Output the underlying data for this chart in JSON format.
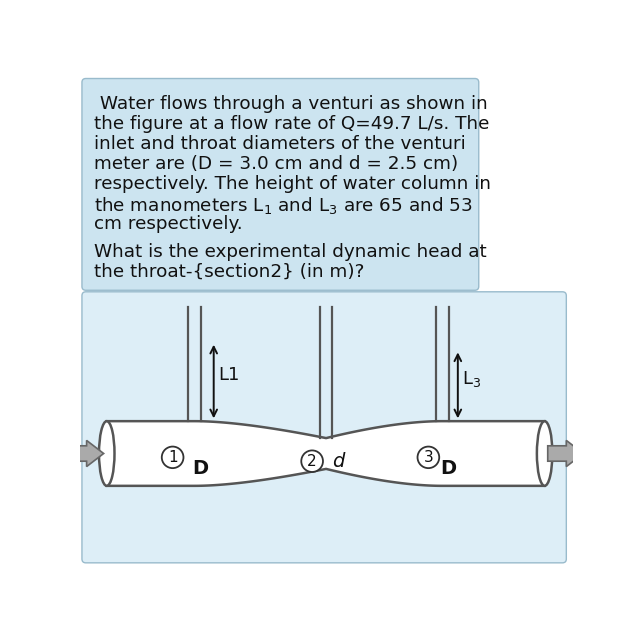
{
  "text_box_color": "#cce4f0",
  "diagram_box_color": "#ddeef7",
  "text_lines": [
    " Water flows through a venturi as shown in",
    "the figure at a flow rate of Q=49.7 L/s. The",
    "inlet and throat diameters of the venturi",
    "meter are (D = 3.0 cm and d = 2.5 cm)",
    "respectively. The height of water column in",
    "the manometers L$_1$ and L$_3$ are 65 and 53",
    "cm respectively."
  ],
  "question_lines": [
    "What is the experimental dynamic head at",
    "the throat-{section2} (in m)?"
  ],
  "font_size": 13.2,
  "pipe_line_color": "#555555",
  "pipe_fill_color": "#ffffff",
  "arrow_fill": "#aaaaaa",
  "arrow_edge": "#666666",
  "label_color": "#111111",
  "pipe_lw": 1.8,
  "tube_lw": 1.6
}
